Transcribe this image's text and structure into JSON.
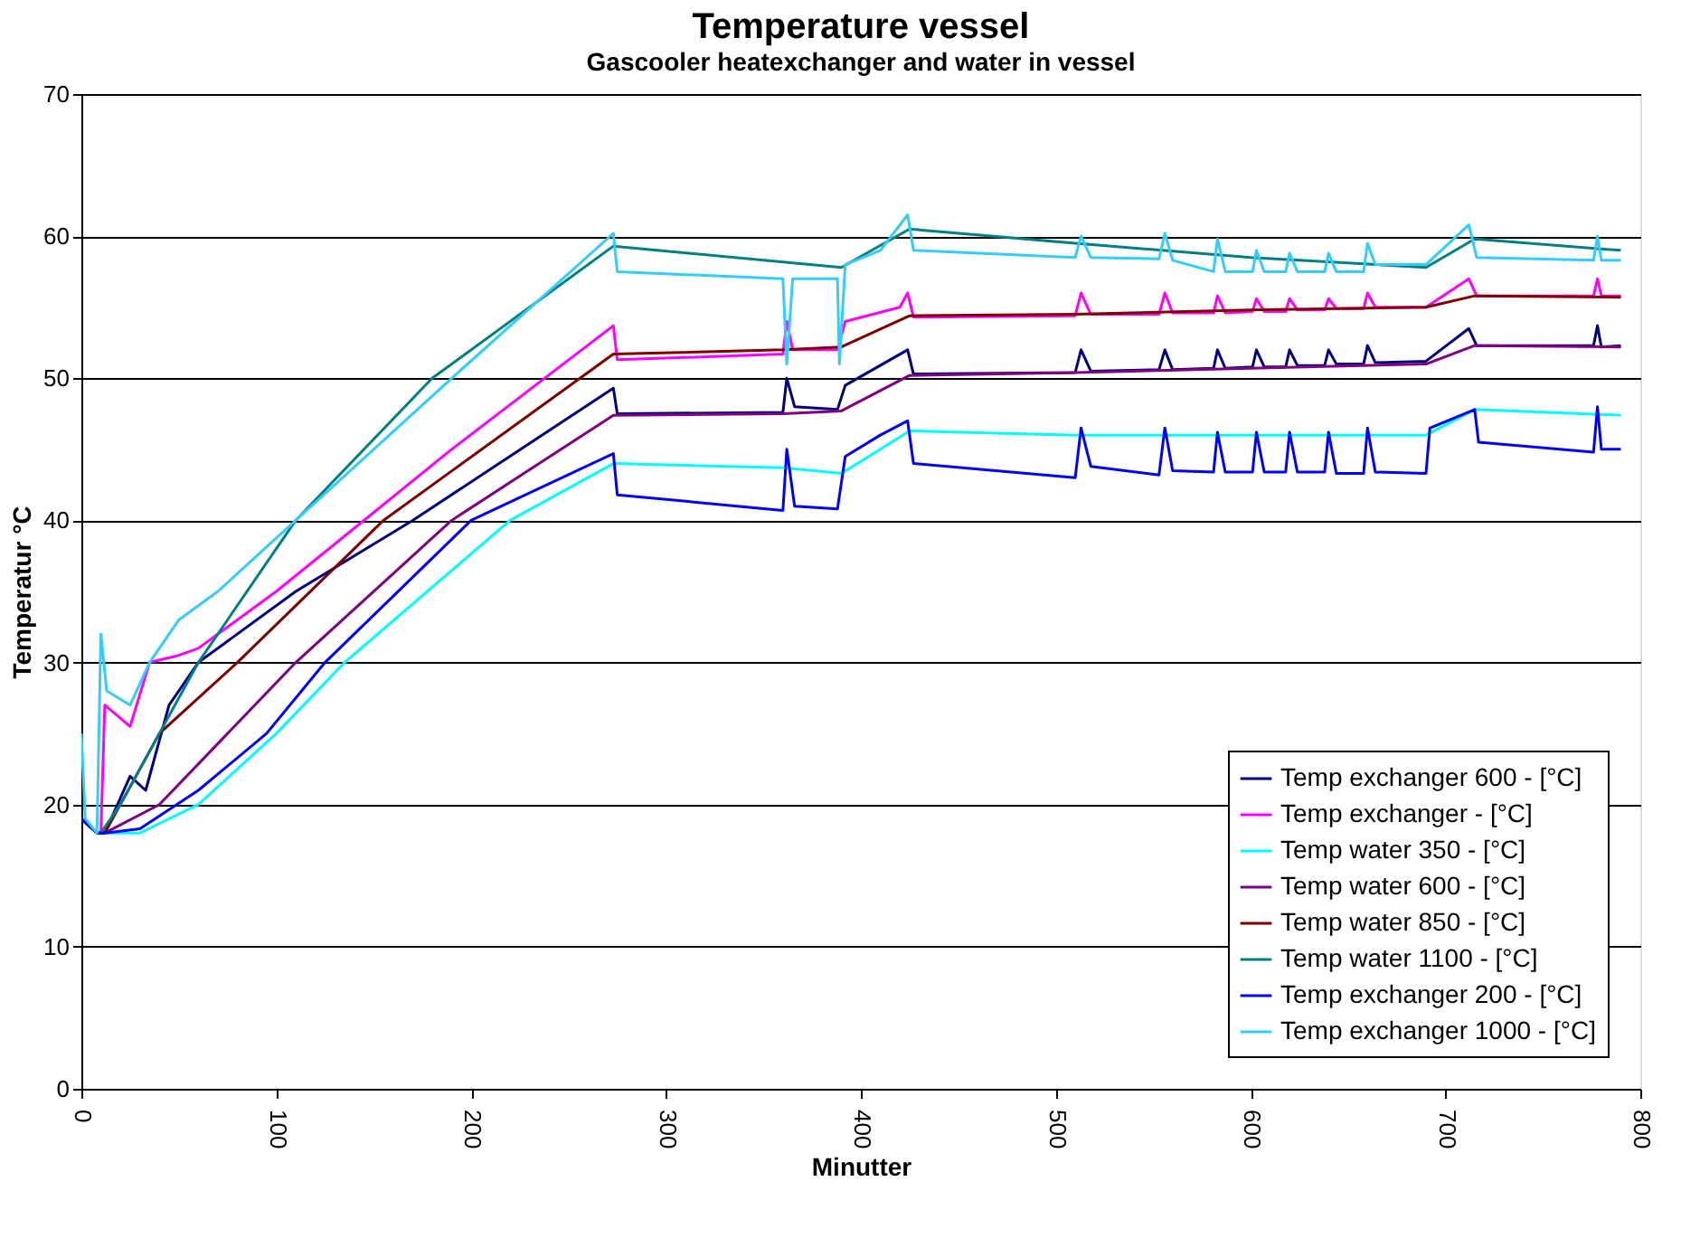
{
  "chart_data": {
    "type": "line",
    "title": "Temperature vessel",
    "subtitle": "Gascooler heatexchanger and water in vessel",
    "xlabel": "Minutter",
    "ylabel": "Temperatur °C",
    "xlim": [
      0,
      800
    ],
    "xticks": [
      0,
      100,
      200,
      300,
      400,
      500,
      600,
      700,
      800
    ],
    "ylim": [
      0,
      70
    ],
    "yticks": [
      0,
      10,
      20,
      30,
      40,
      50,
      60,
      70
    ],
    "grid": "y",
    "legend": "bottom right",
    "marker": "none",
    "line_style": "solid",
    "series": [
      {
        "name": "Temp exchanger 600 - [°C]",
        "color": "#000080",
        "x": [
          0,
          8,
          12,
          25,
          33,
          45,
          60,
          110,
          170,
          273,
          275,
          360,
          362,
          366,
          388,
          392,
          424,
          427,
          510,
          513,
          518,
          553,
          556,
          560,
          581,
          583,
          587,
          601,
          603,
          607,
          618,
          620,
          624,
          638,
          640,
          644,
          658,
          660,
          664,
          690,
          712,
          716,
          776,
          778,
          780,
          790
        ],
        "values": [
          19,
          18,
          18,
          22,
          21,
          27,
          30,
          35,
          40,
          49.3,
          47.5,
          47.6,
          50,
          48,
          47.8,
          49.5,
          52,
          50.3,
          50.4,
          52,
          50.5,
          50.6,
          52,
          50.6,
          50.7,
          52,
          50.7,
          50.8,
          52,
          50.8,
          50.8,
          52,
          50.9,
          50.9,
          52,
          51,
          51,
          52.3,
          51.1,
          51.2,
          53.5,
          52.3,
          52.3,
          53.7,
          52.2,
          52.3
        ]
      },
      {
        "name": "Temp exchanger - [°C]",
        "color": "#ff00ff",
        "x": [
          8,
          10,
          12,
          25,
          35,
          50,
          60,
          100,
          190,
          273,
          275,
          360,
          362,
          365,
          388,
          392,
          420,
          424,
          427,
          510,
          513,
          518,
          553,
          556,
          560,
          581,
          583,
          587,
          601,
          603,
          607,
          618,
          620,
          624,
          638,
          640,
          644,
          658,
          660,
          664,
          690,
          712,
          716,
          776,
          778,
          780,
          790
        ],
        "values": [
          18,
          18,
          27,
          25.5,
          30,
          30.5,
          31,
          35,
          45,
          53.7,
          51.3,
          51.7,
          54,
          52,
          52,
          54,
          55,
          56,
          54.3,
          54.4,
          56,
          54.5,
          54.5,
          56,
          54.6,
          54.6,
          55.8,
          54.6,
          54.7,
          55.6,
          54.7,
          54.7,
          55.6,
          54.8,
          54.8,
          55.6,
          54.9,
          54.9,
          56,
          55,
          55,
          57,
          55.8,
          55.8,
          57,
          55.8,
          55.8
        ]
      },
      {
        "name": "Temp water 350 - [°C]",
        "color": "#00ffff",
        "x": [
          0,
          8,
          12,
          30,
          60,
          100,
          135,
          220,
          273,
          360,
          390,
          425,
          510,
          690,
          715,
          790
        ],
        "values": [
          19,
          18,
          18,
          18,
          20,
          25,
          30,
          40,
          44,
          43.7,
          43.3,
          46.3,
          46,
          46,
          47.8,
          47.4
        ]
      },
      {
        "name": "Temp water 600 - [°C]",
        "color": "#800080",
        "x": [
          0,
          8,
          12,
          40,
          75,
          110,
          190,
          273,
          360,
          390,
          425,
          510,
          690,
          715,
          790
        ],
        "values": [
          19,
          18,
          18,
          20,
          25,
          30,
          40,
          47.4,
          47.5,
          47.7,
          50.2,
          50.4,
          51,
          52.3,
          52.2
        ]
      },
      {
        "name": "Temp water 850 - [°C]",
        "color": "#800000",
        "x": [
          0,
          8,
          12,
          40,
          80,
          155,
          273,
          360,
          390,
          425,
          510,
          600,
          690,
          715,
          790
        ],
        "values": [
          19,
          18,
          18,
          25,
          30,
          40,
          51.7,
          52,
          52.2,
          54.4,
          54.5,
          54.8,
          55,
          55.8,
          55.7
        ]
      },
      {
        "name": "Temp water 1100 - [°C]",
        "color": "#008080",
        "x": [
          0,
          8,
          10,
          20,
          40,
          60,
          110,
          180,
          273,
          390,
          425,
          510,
          600,
          690,
          715,
          790
        ],
        "values": [
          19,
          18,
          18,
          20,
          25,
          30,
          40,
          50,
          59.3,
          57.8,
          60.5,
          59.5,
          58.5,
          57.8,
          59.8,
          59
        ]
      },
      {
        "name": "Temp exchanger 200 - [°C]",
        "color": "#0000ff",
        "x": [
          0,
          8,
          12,
          30,
          60,
          95,
          125,
          200,
          273,
          275,
          360,
          362,
          366,
          388,
          392,
          410,
          424,
          427,
          510,
          513,
          518,
          553,
          556,
          560,
          581,
          583,
          587,
          601,
          603,
          607,
          618,
          620,
          624,
          638,
          640,
          644,
          658,
          660,
          664,
          690,
          692,
          715,
          717,
          776,
          778,
          780,
          790
        ],
        "values": [
          19,
          18,
          18,
          18.3,
          21,
          25,
          30,
          40,
          44.7,
          41.8,
          40.7,
          45,
          41,
          40.8,
          44.5,
          46,
          47,
          44,
          43,
          46.5,
          43.8,
          43.2,
          46.5,
          43.5,
          43.4,
          46.2,
          43.4,
          43.4,
          46.2,
          43.4,
          43.4,
          46.2,
          43.4,
          43.4,
          46.2,
          43.3,
          43.3,
          46.5,
          43.4,
          43.3,
          46.5,
          47.8,
          45.5,
          44.8,
          48,
          45,
          45
        ]
      },
      {
        "name": "Temp exchanger 1000 - [°C]",
        "color": "#33ccff",
        "x": [
          0,
          2,
          8,
          10,
          13,
          25,
          35,
          50,
          70,
          110,
          190,
          273,
          275,
          360,
          362,
          365,
          388,
          389,
          392,
          410,
          424,
          427,
          510,
          513,
          518,
          553,
          556,
          560,
          581,
          583,
          587,
          601,
          603,
          607,
          618,
          620,
          624,
          638,
          640,
          644,
          658,
          660,
          664,
          690,
          712,
          716,
          776,
          778,
          780,
          790
        ],
        "values": [
          25,
          19,
          18,
          32,
          28,
          27,
          30,
          33,
          35,
          40,
          50,
          60.2,
          57.5,
          57,
          51,
          57,
          57,
          51,
          58,
          59,
          61.5,
          59,
          58.5,
          60,
          58.5,
          58.4,
          60.2,
          58.3,
          57.5,
          59.8,
          57.5,
          57.5,
          59,
          57.5,
          57.5,
          58.8,
          57.5,
          57.5,
          58.8,
          57.5,
          57.5,
          59.5,
          58,
          58,
          60.8,
          58.5,
          58.3,
          60,
          58.3,
          58.3
        ]
      }
    ]
  }
}
